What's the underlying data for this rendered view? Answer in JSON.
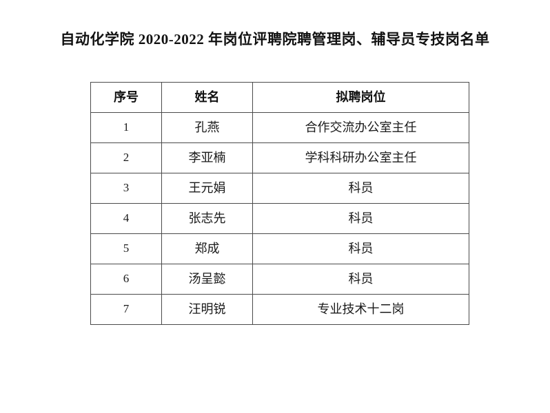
{
  "page": {
    "title": "自动化学院 2020-2022 年岗位评聘院聘管理岗、辅导员专技岗名单"
  },
  "table": {
    "headers": [
      "序号",
      "姓名",
      "拟聘岗位"
    ],
    "rows": [
      {
        "no": "1",
        "name": "孔燕",
        "position": "合作交流办公室主任"
      },
      {
        "no": "2",
        "name": "李亚楠",
        "position": "学科科研办公室主任"
      },
      {
        "no": "3",
        "name": "王元娟",
        "position": "科员"
      },
      {
        "no": "4",
        "name": "张志先",
        "position": "科员"
      },
      {
        "no": "5",
        "name": "郑成",
        "position": "科员"
      },
      {
        "no": "6",
        "name": "汤呈懿",
        "position": "科员"
      },
      {
        "no": "7",
        "name": "汪明锐",
        "position": "专业技术十二岗"
      }
    ]
  },
  "colors": {
    "background": "#ffffff",
    "text": "#1a1a1a",
    "border": "#4a4a4a"
  }
}
